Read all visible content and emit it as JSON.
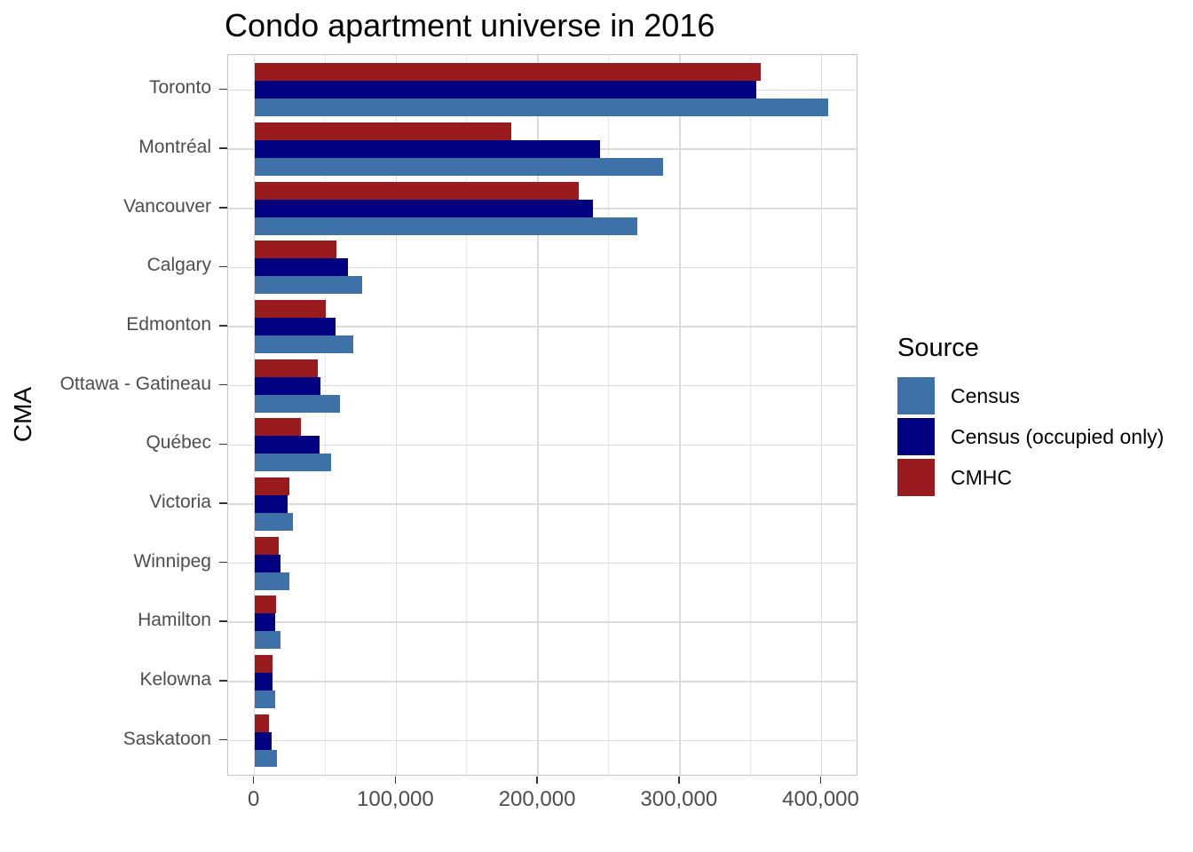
{
  "title": "Condo apartment universe in 2016",
  "chart_data": {
    "type": "bar",
    "orientation": "horizontal",
    "title": "Condo apartment universe in 2016",
    "xlabel": "",
    "ylabel": "CMA",
    "xlim": [
      0,
      424000
    ],
    "x_ticks": [
      0,
      100000,
      200000,
      300000,
      400000
    ],
    "x_tick_labels": [
      "0",
      "100,000",
      "200,000",
      "300,000",
      "400,000"
    ],
    "grid": {
      "major_every": 100000,
      "minor_every": 50000,
      "horizontal_major": true
    },
    "legend": {
      "title": "Source",
      "position": "right"
    },
    "categories": [
      "Toronto",
      "Montréal",
      "Vancouver",
      "Calgary",
      "Edmonton",
      "Ottawa - Gatineau",
      "Québec",
      "Victoria",
      "Winnipeg",
      "Hamilton",
      "Kelowna",
      "Saskatoon"
    ],
    "series": [
      {
        "name": "Census",
        "color": "#3d71a8",
        "values": [
          405000,
          288000,
          270000,
          76000,
          70000,
          60000,
          54000,
          27000,
          24500,
          18500,
          14500,
          16000
        ]
      },
      {
        "name": "Census (occupied only)",
        "color": "#000080",
        "values": [
          354000,
          244000,
          239000,
          66000,
          57000,
          46500,
          46000,
          23500,
          18500,
          14500,
          12500,
          12000
        ]
      },
      {
        "name": "CMHC",
        "color": "#9a1b1e",
        "values": [
          357000,
          181000,
          229000,
          58000,
          50000,
          44500,
          33000,
          24500,
          17000,
          15500,
          12500,
          10500
        ]
      }
    ]
  },
  "colors": {
    "axis_text": "#4d4d4d",
    "tick_mark": "#333333",
    "grid_major": "#dbdbdb",
    "grid_minor": "#e8e8e8",
    "panel_border": "#c4c4c4"
  }
}
